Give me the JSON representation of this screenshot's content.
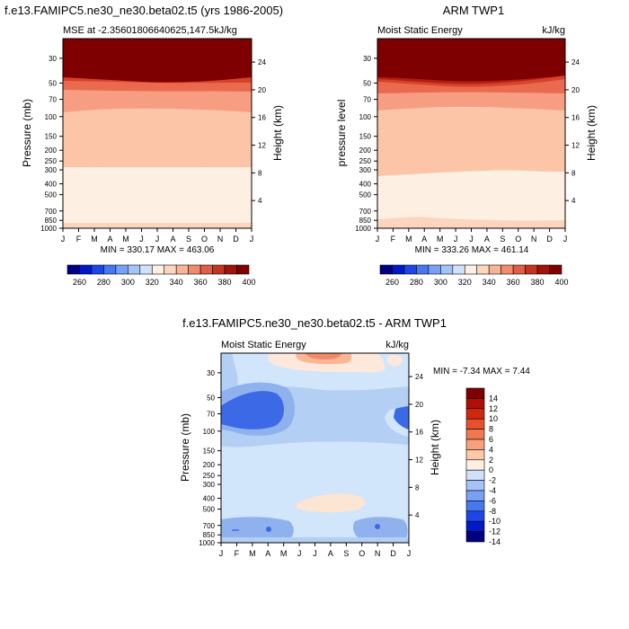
{
  "colors": {
    "frame": "#000000",
    "background": "#ffffff"
  },
  "chart_data": [
    {
      "type": "heatmap",
      "title": "f.e13.FAMIPC5.ne30_ne30.beta02.t5 (yrs 1986-2005)",
      "subtitle_left": "MSE at -2.35601806640625,147.5kJ/kg",
      "subtitle_right": "",
      "ylabel": "Pressure (mb)",
      "ylabel_right": "Height (km)",
      "x": [
        "J",
        "F",
        "M",
        "A",
        "M",
        "J",
        "J",
        "A",
        "S",
        "O",
        "N",
        "D",
        "J"
      ],
      "y_ticks": [
        "30",
        "50",
        "70",
        "100",
        "150",
        "200",
        "250",
        "300",
        "400",
        "500",
        "700",
        "850",
        "1000"
      ],
      "y_right_ticks": [
        "24",
        "20",
        "16",
        "12",
        "8",
        "4"
      ],
      "y_axis": "log-pressure, 1000 at bottom, 20 at top",
      "stats": "MIN = 330.17  MAX = 463.06",
      "unit": "kJ/kg",
      "approx_field": [
        {
          "pressure": 30,
          "values": [
            450,
            452,
            455,
            458,
            460,
            462,
            463,
            462,
            460,
            457,
            454,
            451,
            450
          ]
        },
        {
          "pressure": 50,
          "values": [
            400,
            400,
            398,
            395,
            392,
            390,
            388,
            390,
            392,
            395,
            398,
            400,
            400
          ]
        },
        {
          "pressure": 70,
          "values": [
            370,
            368,
            366,
            364,
            362,
            361,
            360,
            361,
            362,
            364,
            366,
            368,
            370
          ]
        },
        {
          "pressure": 100,
          "values": [
            352,
            351,
            350,
            349,
            348,
            347,
            347,
            347,
            348,
            349,
            350,
            351,
            352
          ]
        },
        {
          "pressure": 200,
          "values": [
            340,
            340,
            340,
            340,
            340,
            340,
            340,
            340,
            340,
            340,
            340,
            340,
            340
          ]
        },
        {
          "pressure": 400,
          "values": [
            334,
            334,
            334,
            334,
            335,
            335,
            335,
            335,
            335,
            335,
            334,
            334,
            334
          ]
        },
        {
          "pressure": 1000,
          "values": [
            342,
            342,
            342,
            342,
            342,
            342,
            342,
            342,
            342,
            342,
            342,
            342,
            342
          ]
        }
      ],
      "colorbar": {
        "labels": [
          "260",
          "280",
          "300",
          "320",
          "340",
          "360",
          "380",
          "400"
        ]
      }
    },
    {
      "type": "heatmap",
      "title": "ARM TWP1",
      "subtitle_left": "Moist Static Energy",
      "subtitle_right": "kJ/kg",
      "ylabel": "pressure level",
      "ylabel_right": "Height (km)",
      "x": [
        "J",
        "F",
        "M",
        "A",
        "M",
        "J",
        "J",
        "A",
        "S",
        "O",
        "N",
        "D",
        "J"
      ],
      "y_ticks": [
        "30",
        "50",
        "70",
        "100",
        "150",
        "200",
        "250",
        "300",
        "400",
        "500",
        "700",
        "850",
        "1000"
      ],
      "y_right_ticks": [
        "24",
        "20",
        "16",
        "12",
        "8",
        "4"
      ],
      "stats": "MIN = 333.26  MAX = 461.14",
      "unit": "kJ/kg",
      "colorbar": {
        "labels": [
          "260",
          "280",
          "300",
          "320",
          "340",
          "360",
          "380",
          "400"
        ]
      }
    },
    {
      "type": "heatmap",
      "title": "f.e13.FAMIPC5.ne30_ne30.beta02.t5 - ARM TWP1",
      "subtitle_left": "Moist Static Energy",
      "subtitle_right": "kJ/kg",
      "ylabel": "Pressure (mb)",
      "ylabel_right": "Height (km)",
      "x": [
        "J",
        "F",
        "M",
        "A",
        "M",
        "J",
        "J",
        "A",
        "S",
        "O",
        "N",
        "D",
        "J"
      ],
      "y_ticks": [
        "30",
        "50",
        "70",
        "100",
        "150",
        "200",
        "250",
        "300",
        "400",
        "500",
        "700",
        "850",
        "1000"
      ],
      "y_right_ticks": [
        "24",
        "20",
        "16",
        "12",
        "8",
        "4"
      ],
      "stats": "MIN =  -7.34 MAX =   7.44",
      "unit": "kJ/kg",
      "colorbar": {
        "labels": [
          "14",
          "12",
          "10",
          "8",
          "6",
          "4",
          "2",
          "0",
          "-2",
          "-4",
          "-6",
          "-8",
          "-10",
          "-12",
          "-14"
        ]
      }
    }
  ]
}
